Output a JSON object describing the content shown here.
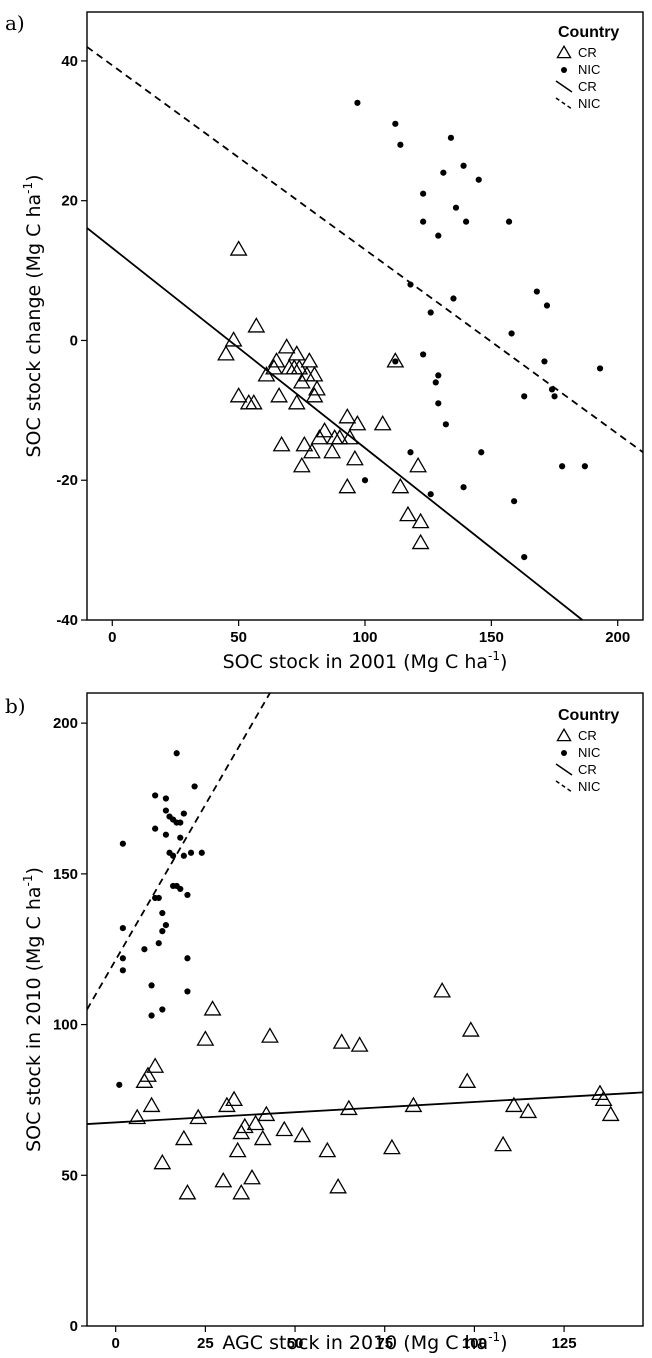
{
  "chart_data": [
    {
      "panel": "a)",
      "type": "scatter",
      "xlabel": "SOC stock in 2001 (Mg C ha",
      "xlabel_sup": "-1",
      "xlabel_end": ")",
      "ylabel": "SOC stock change (Mg C ha",
      "ylabel_sup": "-1",
      "ylabel_end": ")",
      "xlim": [
        -10,
        210
      ],
      "ylim": [
        -40,
        47
      ],
      "xticks": [
        0,
        50,
        100,
        150,
        200
      ],
      "yticks": [
        -40,
        -20,
        0,
        20,
        40
      ],
      "legend": {
        "title": "Country",
        "position": "top-right",
        "entries": [
          {
            "label": "CR",
            "kind": "triangle"
          },
          {
            "label": "NIC",
            "kind": "dot"
          },
          {
            "label": "CR",
            "kind": "solid-line"
          },
          {
            "label": "NIC",
            "kind": "dashed-line"
          }
        ]
      },
      "series": [
        {
          "name": "CR",
          "marker": "triangle",
          "points": [
            [
              50,
              13
            ],
            [
              45,
              -2
            ],
            [
              48,
              0
            ],
            [
              57,
              2
            ],
            [
              50,
              -8
            ],
            [
              54,
              -9
            ],
            [
              56,
              -9
            ],
            [
              61,
              -5
            ],
            [
              64,
              -4
            ],
            [
              65,
              -3
            ],
            [
              66,
              -8
            ],
            [
              67,
              -15
            ],
            [
              69,
              -1
            ],
            [
              70,
              -4
            ],
            [
              72,
              -4
            ],
            [
              73,
              -9
            ],
            [
              73,
              -2
            ],
            [
              74,
              -4
            ],
            [
              75,
              -6
            ],
            [
              75,
              -18
            ],
            [
              76,
              -15
            ],
            [
              77,
              -5
            ],
            [
              78,
              -3
            ],
            [
              79,
              -16
            ],
            [
              80,
              -5
            ],
            [
              80,
              -8
            ],
            [
              81,
              -7
            ],
            [
              82,
              -14
            ],
            [
              84,
              -13
            ],
            [
              87,
              -16
            ],
            [
              88,
              -14
            ],
            [
              90,
              -14
            ],
            [
              93,
              -21
            ],
            [
              93,
              -11
            ],
            [
              94,
              -14
            ],
            [
              96,
              -17
            ],
            [
              97,
              -12
            ],
            [
              107,
              -12
            ],
            [
              112,
              -3
            ],
            [
              114,
              -21
            ],
            [
              117,
              -25
            ],
            [
              121,
              -18
            ],
            [
              122,
              -26
            ],
            [
              122,
              -29
            ]
          ]
        },
        {
          "name": "NIC",
          "marker": "dot",
          "points": [
            [
              97,
              34
            ],
            [
              112,
              31
            ],
            [
              114,
              28
            ],
            [
              112,
              -3
            ],
            [
              118,
              8
            ],
            [
              118,
              -16
            ],
            [
              123,
              21
            ],
            [
              123,
              17
            ],
            [
              123,
              -2
            ],
            [
              126,
              4
            ],
            [
              126,
              -22
            ],
            [
              128,
              -6
            ],
            [
              129,
              15
            ],
            [
              129,
              -9
            ],
            [
              129,
              -5
            ],
            [
              131,
              24
            ],
            [
              132,
              -12
            ],
            [
              134,
              29
            ],
            [
              135,
              6
            ],
            [
              136,
              19
            ],
            [
              139,
              25
            ],
            [
              139,
              -21
            ],
            [
              140,
              17
            ],
            [
              145,
              23
            ],
            [
              146,
              -16
            ],
            [
              157,
              17
            ],
            [
              158,
              1
            ],
            [
              159,
              -23
            ],
            [
              163,
              -31
            ],
            [
              163,
              -8
            ],
            [
              168,
              7
            ],
            [
              171,
              -3
            ],
            [
              172,
              5
            ],
            [
              174,
              -7
            ],
            [
              175,
              -8
            ],
            [
              178,
              -18
            ],
            [
              187,
              -18
            ],
            [
              193,
              -4
            ],
            [
              100,
              -20
            ]
          ]
        }
      ],
      "fit_lines": [
        {
          "name": "CR",
          "style": "solid",
          "x": [
            -10,
            186
          ],
          "y": [
            16.1,
            -40
          ]
        },
        {
          "name": "NIC",
          "style": "dashed",
          "x": [
            -10,
            210
          ],
          "y": [
            42,
            -16
          ]
        }
      ]
    },
    {
      "panel": "b)",
      "type": "scatter",
      "xlabel": "AGC stock in 2010 (Mg C ha",
      "xlabel_sup": "-1",
      "xlabel_end": ")",
      "ylabel": "SOC stock in 2010 (Mg C ha",
      "ylabel_sup": "-1",
      "ylabel_end": ")",
      "xlim": [
        -8,
        147
      ],
      "ylim": [
        0,
        210
      ],
      "xticks": [
        0,
        25,
        50,
        75,
        100,
        125
      ],
      "yticks": [
        0,
        50,
        100,
        150,
        200
      ],
      "legend": {
        "title": "Country",
        "position": "top-right",
        "entries": [
          {
            "label": "CR",
            "kind": "triangle"
          },
          {
            "label": "NIC",
            "kind": "dot"
          },
          {
            "label": "CR",
            "kind": "solid-line"
          },
          {
            "label": "NIC",
            "kind": "dashed-line"
          }
        ]
      },
      "series": [
        {
          "name": "CR",
          "marker": "triangle",
          "points": [
            [
              6,
              69
            ],
            [
              8,
              81
            ],
            [
              9,
              83
            ],
            [
              10,
              73
            ],
            [
              11,
              86
            ],
            [
              13,
              54
            ],
            [
              19,
              62
            ],
            [
              20,
              44
            ],
            [
              23,
              69
            ],
            [
              25,
              95
            ],
            [
              27,
              105
            ],
            [
              30,
              48
            ],
            [
              31,
              73
            ],
            [
              33,
              75
            ],
            [
              34,
              58
            ],
            [
              35,
              44
            ],
            [
              35,
              64
            ],
            [
              36,
              66
            ],
            [
              38,
              49
            ],
            [
              39,
              67
            ],
            [
              41,
              62
            ],
            [
              42,
              70
            ],
            [
              43,
              96
            ],
            [
              47,
              65
            ],
            [
              52,
              63
            ],
            [
              59,
              58
            ],
            [
              62,
              46
            ],
            [
              63,
              94
            ],
            [
              65,
              72
            ],
            [
              68,
              93
            ],
            [
              77,
              59
            ],
            [
              83,
              73
            ],
            [
              91,
              111
            ],
            [
              98,
              81
            ],
            [
              99,
              98
            ],
            [
              108,
              60
            ],
            [
              111,
              73
            ],
            [
              115,
              71
            ],
            [
              135,
              77
            ],
            [
              136,
              75
            ],
            [
              138,
              70
            ]
          ]
        },
        {
          "name": "NIC",
          "marker": "dot",
          "points": [
            [
              1,
              80
            ],
            [
              2,
              118
            ],
            [
              2,
              122
            ],
            [
              2,
              132
            ],
            [
              2,
              160
            ],
            [
              8,
              125
            ],
            [
              10,
              103
            ],
            [
              10,
              113
            ],
            [
              11,
              142
            ],
            [
              11,
              176
            ],
            [
              11,
              165
            ],
            [
              12,
              127
            ],
            [
              12,
              142
            ],
            [
              13,
              105
            ],
            [
              13,
              137
            ],
            [
              13,
              131
            ],
            [
              14,
              133
            ],
            [
              14,
              175
            ],
            [
              14,
              163
            ],
            [
              15,
              169
            ],
            [
              15,
              157
            ],
            [
              16,
              168
            ],
            [
              16,
              146
            ],
            [
              16,
              156
            ],
            [
              17,
              190
            ],
            [
              17,
              167
            ],
            [
              17,
              146
            ],
            [
              18,
              145
            ],
            [
              18,
              167
            ],
            [
              18,
              162
            ],
            [
              19,
              170
            ],
            [
              19,
              156
            ],
            [
              20,
              122
            ],
            [
              20,
              111
            ],
            [
              20,
              143
            ],
            [
              21,
              157
            ],
            [
              22,
              179
            ],
            [
              24,
              157
            ],
            [
              14,
              171
            ]
          ]
        }
      ],
      "fit_lines": [
        {
          "name": "CR",
          "style": "solid",
          "x": [
            -8,
            147
          ],
          "y": [
            67,
            77.5
          ]
        },
        {
          "name": "NIC",
          "style": "dashed",
          "x": [
            -8,
            43
          ],
          "y": [
            105,
            210
          ]
        }
      ]
    }
  ]
}
